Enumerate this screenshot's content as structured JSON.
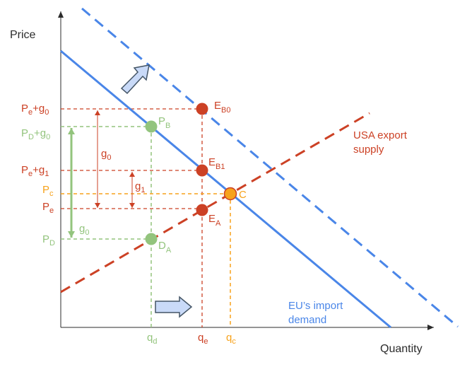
{
  "axes": {
    "y_label": "Price",
    "x_label": "Quantity"
  },
  "colors": {
    "red": "#cc4125",
    "green": "#93c47d",
    "orange": "#f7a21b",
    "blue": "#4a86e8",
    "dark": "#2b2b2b",
    "arrow_fill": "#c9daf8",
    "arrow_stroke": "#445566"
  },
  "curves": {
    "eu_import_demand": {
      "line1": "EU’s import",
      "line2": "demand"
    },
    "usa_export_supply": {
      "line1": "USA export",
      "line2": "supply"
    }
  },
  "y_labels": {
    "pe_g0": {
      "a": "P",
      "a_sub": "e",
      "b": "+g",
      "b_sub": "0"
    },
    "pd_g0": {
      "a": "P",
      "a_sub": "D",
      "b": "+g",
      "b_sub": "0"
    },
    "pe_g1": {
      "a": "P",
      "a_sub": "e",
      "b": "+g",
      "b_sub": "1"
    },
    "pc": {
      "a": "P",
      "a_sub": "c"
    },
    "pe": {
      "a": "P",
      "a_sub": "e"
    },
    "pd": {
      "a": "P",
      "a_sub": "D"
    }
  },
  "x_labels": {
    "qd": {
      "a": "q",
      "a_sub": "d"
    },
    "qe": {
      "a": "q",
      "a_sub": "e"
    },
    "qc": {
      "a": "q",
      "a_sub": "c"
    }
  },
  "points": {
    "eb0": {
      "a": "E",
      "a_sub": "B0"
    },
    "eb1": {
      "a": "E",
      "a_sub": "B1"
    },
    "ea": {
      "a": "E",
      "a_sub": "A"
    },
    "c": {
      "a": "C"
    },
    "pb": {
      "a": "P",
      "a_sub": "B"
    },
    "da": {
      "a": "D",
      "a_sub": "A"
    }
  },
  "gaps": {
    "g0_red": {
      "a": "g",
      "a_sub": "0"
    },
    "g1_red": {
      "a": "g",
      "a_sub": "1"
    },
    "g0_green": {
      "a": "g",
      "a_sub": "0"
    }
  }
}
